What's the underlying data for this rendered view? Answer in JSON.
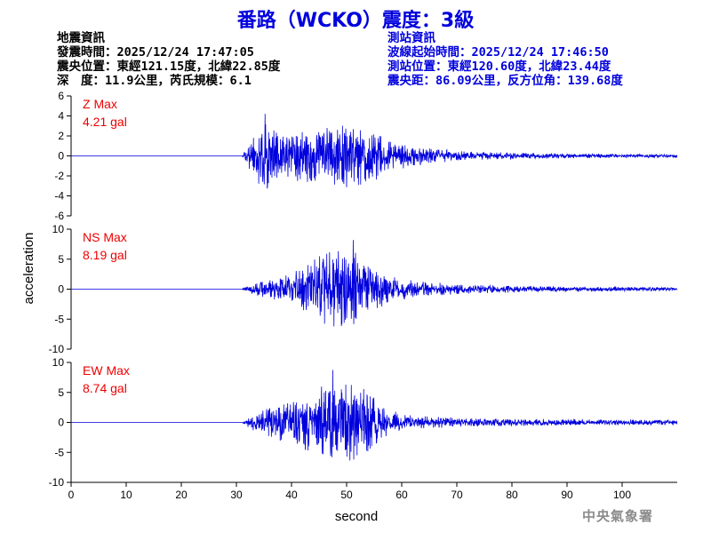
{
  "title": "番路（WCKO）震度：3級",
  "earthquake_info": {
    "heading": "地震資訊",
    "origin_time": "發震時間：2025/12/24 17:47:05",
    "epicenter": "震央位置：東經121.15度，北緯22.85度",
    "depth_magnitude": "深　度：11.9公里，芮氏規模：6.1"
  },
  "station_info": {
    "heading": "測站資訊",
    "wave_start": "波線起始時間：2025/12/24 17:46:50",
    "location": "測站位置：東經120.60度，北緯23.44度",
    "distance_azimuth": "震央距：86.09公里，反方位角：139.68度"
  },
  "agency": "中央氣象署",
  "chart_data": {
    "type": "line",
    "xlabel": "second",
    "ylabel": "acceleration",
    "xlim": [
      0,
      110
    ],
    "xticks": [
      0,
      10,
      20,
      30,
      40,
      50,
      60,
      70,
      80,
      90,
      100
    ],
    "line_color": "#0000dd",
    "label_color": "#ee0000",
    "panels": [
      {
        "component": "Z",
        "max_label": "Z Max",
        "max_value": "4.21 gal",
        "ylim": [
          -6,
          6
        ],
        "yticks": [
          -6,
          -4,
          -2,
          0,
          2,
          4,
          6
        ],
        "envelope": {
          "t": [
            0,
            31,
            33,
            35,
            37,
            39,
            41,
            43,
            45,
            47,
            49,
            51,
            53,
            55,
            57,
            60,
            64,
            68,
            72,
            80,
            90,
            100,
            110
          ],
          "a": [
            0,
            0,
            1.6,
            2.8,
            2.2,
            1.8,
            2.0,
            2.2,
            2.3,
            2.4,
            2.5,
            2.4,
            2.3,
            2.0,
            1.5,
            1.0,
            0.7,
            0.5,
            0.35,
            0.25,
            0.2,
            0.15,
            0.12
          ]
        },
        "peak_time": 35.2
      },
      {
        "component": "NS",
        "max_label": "NS Max",
        "max_value": "8.19 gal",
        "ylim": [
          -10,
          10
        ],
        "yticks": [
          -10,
          -5,
          0,
          5,
          10
        ],
        "envelope": {
          "t": [
            0,
            31,
            33,
            36,
            39,
            42,
            44,
            46,
            48,
            50,
            52,
            54,
            56,
            58,
            60,
            64,
            68,
            72,
            80,
            90,
            100,
            110
          ],
          "a": [
            0,
            0,
            0.8,
            1.2,
            2.0,
            2.8,
            4.2,
            5.2,
            5.0,
            5.4,
            4.8,
            3.5,
            2.6,
            1.8,
            1.4,
            1.0,
            0.8,
            0.6,
            0.45,
            0.35,
            0.3,
            0.25
          ]
        },
        "peak_time": 51.2
      },
      {
        "component": "EW",
        "max_label": "EW Max",
        "max_value": "8.74 gal",
        "ylim": [
          -10,
          10
        ],
        "yticks": [
          -10,
          -5,
          0,
          5,
          10
        ],
        "envelope": {
          "t": [
            0,
            31,
            33,
            36,
            39,
            42,
            44,
            46,
            48,
            50,
            52,
            54,
            56,
            58,
            60,
            64,
            68,
            72,
            80,
            90,
            100,
            110
          ],
          "a": [
            0,
            0,
            1.2,
            2.0,
            2.8,
            3.5,
            4.2,
            5.0,
            5.6,
            5.8,
            5.0,
            3.8,
            2.6,
            1.6,
            1.1,
            0.8,
            0.7,
            0.6,
            0.5,
            0.4,
            0.35,
            0.3
          ]
        },
        "peak_time": 47.5
      }
    ]
  }
}
